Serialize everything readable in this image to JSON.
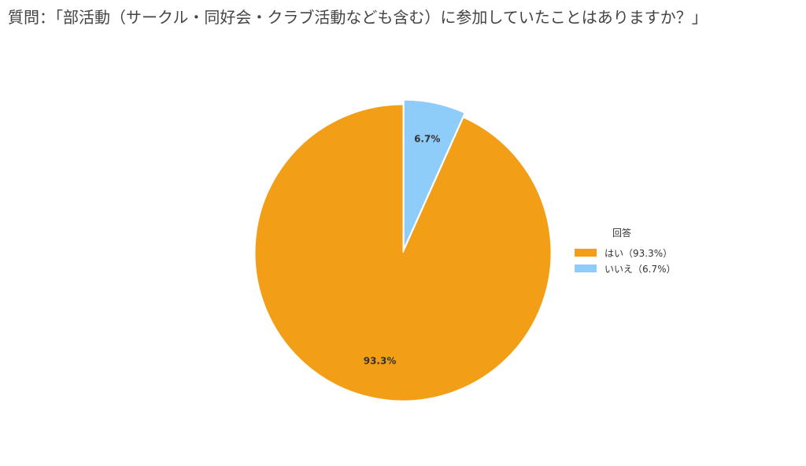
{
  "chart_data": {
    "type": "pie",
    "title": "質問：「部活動（サークル・同好会・クラブ活動なども含む）に参加していたことはありますか？」",
    "legend_title": "回答",
    "legend_position": "right",
    "slices": [
      {
        "label": "いいえ",
        "value": 6.7,
        "value_label": "6.7%",
        "legend_label": "いいえ（6.7%）",
        "color": "#8ecdf9"
      },
      {
        "label": "はい",
        "value": 93.3,
        "value_label": "93.3%",
        "legend_label": "はい（93.3%）",
        "color": "#f29e16"
      }
    ],
    "legend_order": [
      1,
      0
    ]
  }
}
